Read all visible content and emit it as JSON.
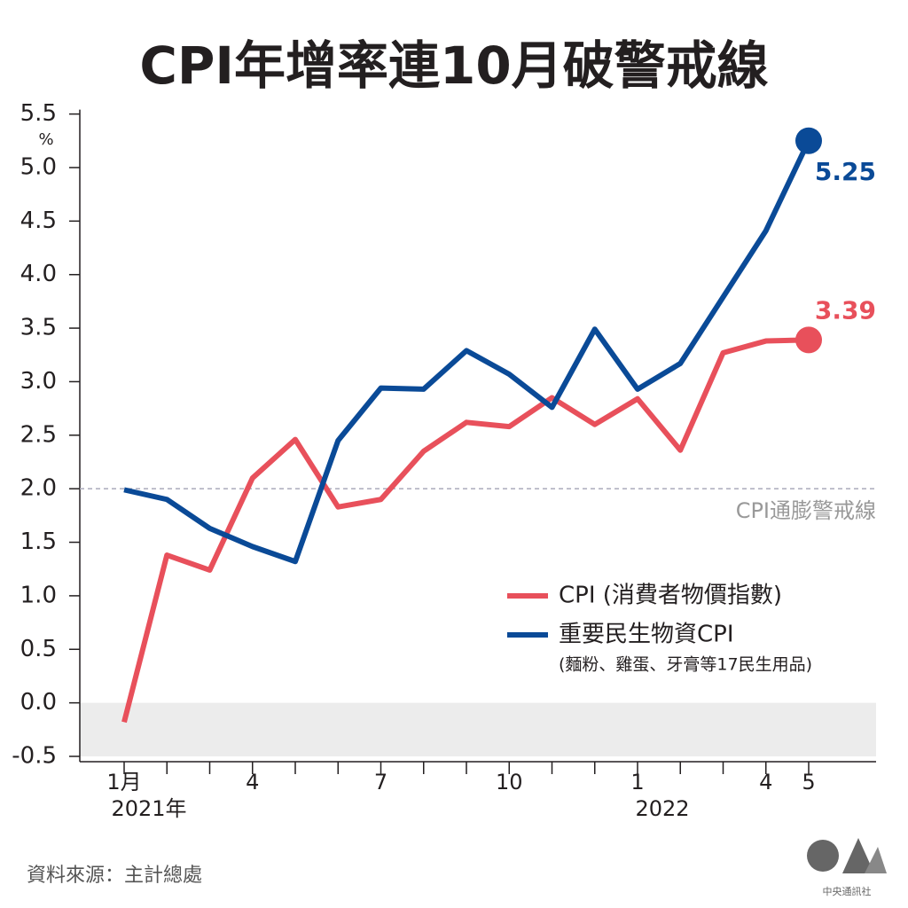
{
  "chart_data": {
    "type": "line",
    "title": "CPI年增率連10月破警戒線",
    "unit": "%",
    "categories": [
      "1月",
      null,
      null,
      "4",
      null,
      null,
      "7",
      null,
      null,
      "10",
      null,
      null,
      "1",
      null,
      null,
      "4",
      "5"
    ],
    "year_labels": [
      "2021年",
      null,
      null,
      null,
      null,
      null,
      null,
      null,
      null,
      null,
      null,
      null,
      "2022",
      null,
      null,
      null,
      null
    ],
    "series": [
      {
        "name": "CPI (消費者物價指數)",
        "color": "#e8505b",
        "values": [
          -0.18,
          1.38,
          1.24,
          2.1,
          2.46,
          1.83,
          1.9,
          2.35,
          2.62,
          2.58,
          2.85,
          2.6,
          2.84,
          2.36,
          3.27,
          3.38,
          3.39
        ]
      },
      {
        "name": "重要民生物資CPI",
        "note": "(麵粉、雞蛋、牙膏等17民生用品)",
        "color": "#0a4a97",
        "values": [
          1.99,
          1.9,
          1.63,
          1.46,
          1.32,
          2.45,
          2.94,
          2.93,
          3.29,
          3.07,
          2.76,
          3.49,
          2.93,
          3.17,
          3.79,
          4.41,
          5.25
        ]
      }
    ],
    "ylim": [
      -0.5,
      5.5
    ],
    "yticks": [
      -0.5,
      {
        "value": 0,
        "label": "0.0"
      },
      0.5,
      {
        "value": 1,
        "label": "1.0"
      },
      1.5,
      {
        "value": 2,
        "label": "2.0"
      },
      2.5,
      {
        "value": 3,
        "label": "3.0"
      },
      3.5,
      {
        "value": 4,
        "label": "4.0"
      },
      4.5,
      {
        "value": 5,
        "label": "5.0"
      },
      5.5
    ],
    "threshold": {
      "value": 2.0,
      "label": "CPI通膨警戒線"
    },
    "shade_below_zero": true,
    "source": "資料來源：主計總處",
    "credit": "中央通訊社"
  }
}
